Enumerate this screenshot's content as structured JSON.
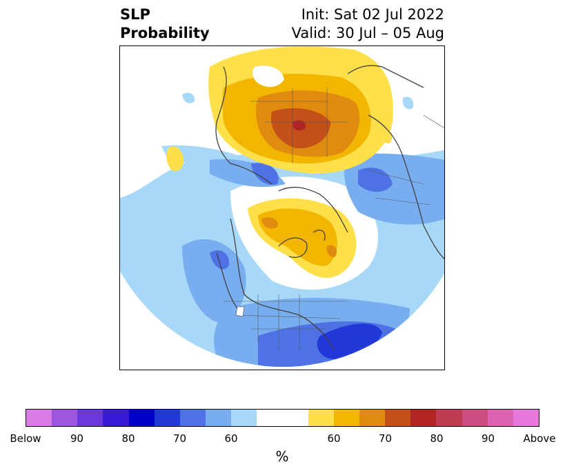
{
  "title": {
    "left_line1": "SLP",
    "left_line2": "Probability",
    "right_line1": "Init: Sat 02 Jul 2022",
    "right_line2": "Valid: 30 Jul – 05 Aug"
  },
  "colorbar": {
    "colors": [
      "#d87ae8",
      "#9c56e2",
      "#6a38da",
      "#3a1ad6",
      "#0000cc",
      "#2338d8",
      "#4e72e4",
      "#78aef0",
      "#a8d8f8",
      "#ffffff",
      "#ffe04a",
      "#f2b600",
      "#e08a10",
      "#c25018",
      "#b02424",
      "#c03a52",
      "#cc4e80",
      "#da62b0",
      "#e878dc"
    ],
    "tick_labels": [
      "Below",
      "90",
      "80",
      "70",
      "60",
      "60",
      "70",
      "80",
      "90",
      "Above"
    ],
    "unit": "%"
  },
  "map": {
    "projection": "north-polar-stereographic",
    "legend_category_colors": {
      "below_60": "#a8d8f8",
      "below_70": "#78aef0",
      "below_80": "#4e72e4",
      "below_90": "#2338d8",
      "above_60": "#ffe04a",
      "above_70": "#f2b600",
      "above_80": "#e08a10",
      "above_90": "#c25018",
      "above_max": "#b02424"
    }
  }
}
